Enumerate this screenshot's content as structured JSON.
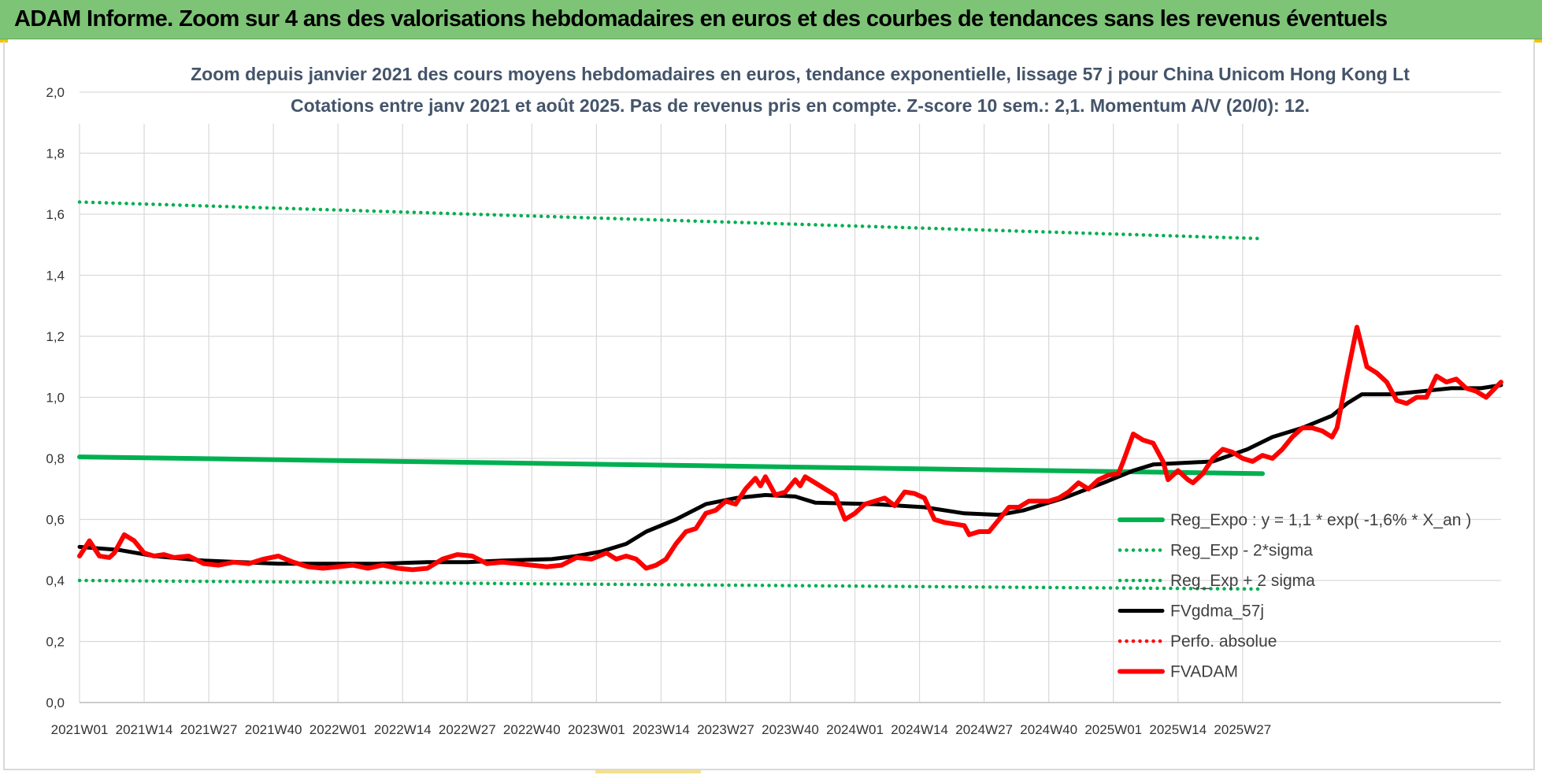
{
  "banner": {
    "title": "ADAM Informe. Zoom sur 4 ans des valorisations hebdomadaires en euros et des courbes de tendances sans les revenus éventuels",
    "background": "#7dc476"
  },
  "chart_data": {
    "type": "line",
    "title_line1": "Zoom depuis janvier 2021 des cours moyens hebdomadaires en euros, tendance exponentielle, lissage 57 j pour China Unicom Hong Kong Lt",
    "title_line2": "Cotations entre janv 2021 et août 2025.  Pas de revenus pris en compte. Z-score 10 sem.: 2,1. Momentum A/V (20/0): 12.",
    "x_tick_labels": [
      "2021W01",
      "2021W14",
      "2021W27",
      "2021W40",
      "2022W01",
      "2022W14",
      "2022W27",
      "2022W40",
      "2023W01",
      "2023W14",
      "2023W27",
      "2023W40",
      "2024W01",
      "2024W14",
      "2024W27",
      "2024W40",
      "2025W01",
      "2025W14",
      "2025W27"
    ],
    "y_tick_labels": [
      "0,0",
      "0,2",
      "0,4",
      "0,6",
      "0,8",
      "1,0",
      "1,2",
      "1,4",
      "1,6",
      "1,8",
      "2,0"
    ],
    "ylim": [
      0,
      2.0
    ],
    "x_range_weeks": [
      0,
      238
    ],
    "grid": true,
    "legend_position": "right-bottom",
    "series": [
      {
        "name": "Reg_Expo : y = 1,1 * exp( -1,6% *  X_an )",
        "style": "solid-thick",
        "color": "#00b050",
        "points": [
          [
            0,
            0.805
          ],
          [
            238,
            0.75
          ]
        ]
      },
      {
        "name": "Reg_Exp - 2*sigma",
        "style": "dotted",
        "color": "#00b050",
        "points": [
          [
            0,
            0.4
          ],
          [
            238,
            0.372
          ]
        ]
      },
      {
        "name": "Reg_Exp + 2 sigma",
        "style": "dotted",
        "color": "#00b050",
        "points": [
          [
            0,
            1.64
          ],
          [
            238,
            1.52
          ]
        ]
      },
      {
        "name": "FVgdma_57j",
        "style": "solid",
        "color": "#000000",
        "points": [
          [
            0,
            0.51
          ],
          [
            8,
            0.5
          ],
          [
            15,
            0.48
          ],
          [
            25,
            0.465
          ],
          [
            40,
            0.455
          ],
          [
            60,
            0.455
          ],
          [
            70,
            0.46
          ],
          [
            78,
            0.46
          ],
          [
            85,
            0.465
          ],
          [
            95,
            0.47
          ],
          [
            100,
            0.48
          ],
          [
            105,
            0.495
          ],
          [
            110,
            0.52
          ],
          [
            114,
            0.56
          ],
          [
            120,
            0.6
          ],
          [
            126,
            0.65
          ],
          [
            132,
            0.67
          ],
          [
            138,
            0.68
          ],
          [
            144,
            0.675
          ],
          [
            148,
            0.655
          ],
          [
            160,
            0.65
          ],
          [
            170,
            0.64
          ],
          [
            178,
            0.62
          ],
          [
            185,
            0.615
          ],
          [
            190,
            0.63
          ],
          [
            198,
            0.67
          ],
          [
            206,
            0.72
          ],
          [
            212,
            0.76
          ],
          [
            216,
            0.78
          ],
          [
            222,
            0.785
          ],
          [
            228,
            0.79
          ],
          [
            235,
            0.83
          ],
          [
            240,
            0.87
          ],
          [
            246,
            0.9
          ],
          [
            252,
            0.94
          ],
          [
            255,
            0.98
          ],
          [
            258,
            1.01
          ],
          [
            264,
            1.01
          ],
          [
            270,
            1.02
          ],
          [
            276,
            1.03
          ],
          [
            282,
            1.03
          ],
          [
            286,
            1.04
          ]
        ]
      },
      {
        "name": "Perfo. absolue",
        "style": "dotted",
        "color": "#ff0000",
        "points": []
      },
      {
        "name": "FVADAM",
        "style": "solid-thick",
        "color": "#ff0000",
        "points": [
          [
            0,
            0.48
          ],
          [
            2,
            0.53
          ],
          [
            4,
            0.48
          ],
          [
            6,
            0.475
          ],
          [
            7,
            0.49
          ],
          [
            9,
            0.55
          ],
          [
            11,
            0.53
          ],
          [
            13,
            0.49
          ],
          [
            15,
            0.48
          ],
          [
            17,
            0.485
          ],
          [
            19,
            0.475
          ],
          [
            22,
            0.48
          ],
          [
            25,
            0.455
          ],
          [
            28,
            0.45
          ],
          [
            31,
            0.46
          ],
          [
            34,
            0.455
          ],
          [
            37,
            0.47
          ],
          [
            40,
            0.48
          ],
          [
            43,
            0.46
          ],
          [
            46,
            0.445
          ],
          [
            49,
            0.44
          ],
          [
            52,
            0.445
          ],
          [
            55,
            0.45
          ],
          [
            58,
            0.44
          ],
          [
            61,
            0.45
          ],
          [
            64,
            0.44
          ],
          [
            67,
            0.435
          ],
          [
            70,
            0.44
          ],
          [
            73,
            0.47
          ],
          [
            76,
            0.485
          ],
          [
            79,
            0.48
          ],
          [
            82,
            0.455
          ],
          [
            85,
            0.46
          ],
          [
            88,
            0.455
          ],
          [
            91,
            0.45
          ],
          [
            94,
            0.445
          ],
          [
            97,
            0.45
          ],
          [
            100,
            0.475
          ],
          [
            103,
            0.47
          ],
          [
            106,
            0.49
          ],
          [
            108,
            0.47
          ],
          [
            110,
            0.48
          ],
          [
            112,
            0.47
          ],
          [
            114,
            0.44
          ],
          [
            116,
            0.45
          ],
          [
            118,
            0.47
          ],
          [
            120,
            0.52
          ],
          [
            122,
            0.56
          ],
          [
            124,
            0.57
          ],
          [
            126,
            0.62
          ],
          [
            128,
            0.63
          ],
          [
            130,
            0.66
          ],
          [
            132,
            0.65
          ],
          [
            134,
            0.7
          ],
          [
            136,
            0.735
          ],
          [
            137,
            0.71
          ],
          [
            138,
            0.74
          ],
          [
            140,
            0.68
          ],
          [
            142,
            0.69
          ],
          [
            144,
            0.73
          ],
          [
            145,
            0.71
          ],
          [
            146,
            0.74
          ],
          [
            148,
            0.72
          ],
          [
            150,
            0.7
          ],
          [
            152,
            0.68
          ],
          [
            154,
            0.6
          ],
          [
            156,
            0.62
          ],
          [
            158,
            0.65
          ],
          [
            160,
            0.66
          ],
          [
            162,
            0.67
          ],
          [
            164,
            0.645
          ],
          [
            166,
            0.69
          ],
          [
            168,
            0.685
          ],
          [
            170,
            0.67
          ],
          [
            172,
            0.6
          ],
          [
            174,
            0.59
          ],
          [
            176,
            0.585
          ],
          [
            178,
            0.58
          ],
          [
            179,
            0.55
          ],
          [
            181,
            0.56
          ],
          [
            183,
            0.56
          ],
          [
            185,
            0.6
          ],
          [
            187,
            0.64
          ],
          [
            189,
            0.64
          ],
          [
            191,
            0.66
          ],
          [
            193,
            0.66
          ],
          [
            195,
            0.66
          ],
          [
            197,
            0.67
          ],
          [
            199,
            0.69
          ],
          [
            201,
            0.72
          ],
          [
            203,
            0.7
          ],
          [
            205,
            0.73
          ],
          [
            207,
            0.745
          ],
          [
            209,
            0.75
          ],
          [
            210,
            0.79
          ],
          [
            212,
            0.88
          ],
          [
            214,
            0.86
          ],
          [
            216,
            0.85
          ],
          [
            218,
            0.79
          ],
          [
            219,
            0.73
          ],
          [
            221,
            0.76
          ],
          [
            223,
            0.73
          ],
          [
            224,
            0.72
          ],
          [
            226,
            0.75
          ],
          [
            228,
            0.8
          ],
          [
            230,
            0.83
          ],
          [
            232,
            0.82
          ],
          [
            234,
            0.8
          ],
          [
            236,
            0.79
          ],
          [
            238,
            0.81
          ],
          [
            240,
            0.8
          ],
          [
            242,
            0.83
          ],
          [
            244,
            0.87
          ],
          [
            246,
            0.9
          ],
          [
            248,
            0.9
          ],
          [
            250,
            0.89
          ],
          [
            252,
            0.87
          ],
          [
            253,
            0.9
          ],
          [
            255,
            1.07
          ],
          [
            257,
            1.23
          ],
          [
            259,
            1.1
          ],
          [
            261,
            1.08
          ],
          [
            263,
            1.05
          ],
          [
            265,
            0.99
          ],
          [
            267,
            0.98
          ],
          [
            269,
            1.0
          ],
          [
            271,
            1.0
          ],
          [
            273,
            1.07
          ],
          [
            275,
            1.05
          ],
          [
            277,
            1.06
          ],
          [
            279,
            1.03
          ],
          [
            281,
            1.02
          ],
          [
            283,
            1.0
          ],
          [
            286,
            1.05
          ]
        ]
      }
    ]
  }
}
